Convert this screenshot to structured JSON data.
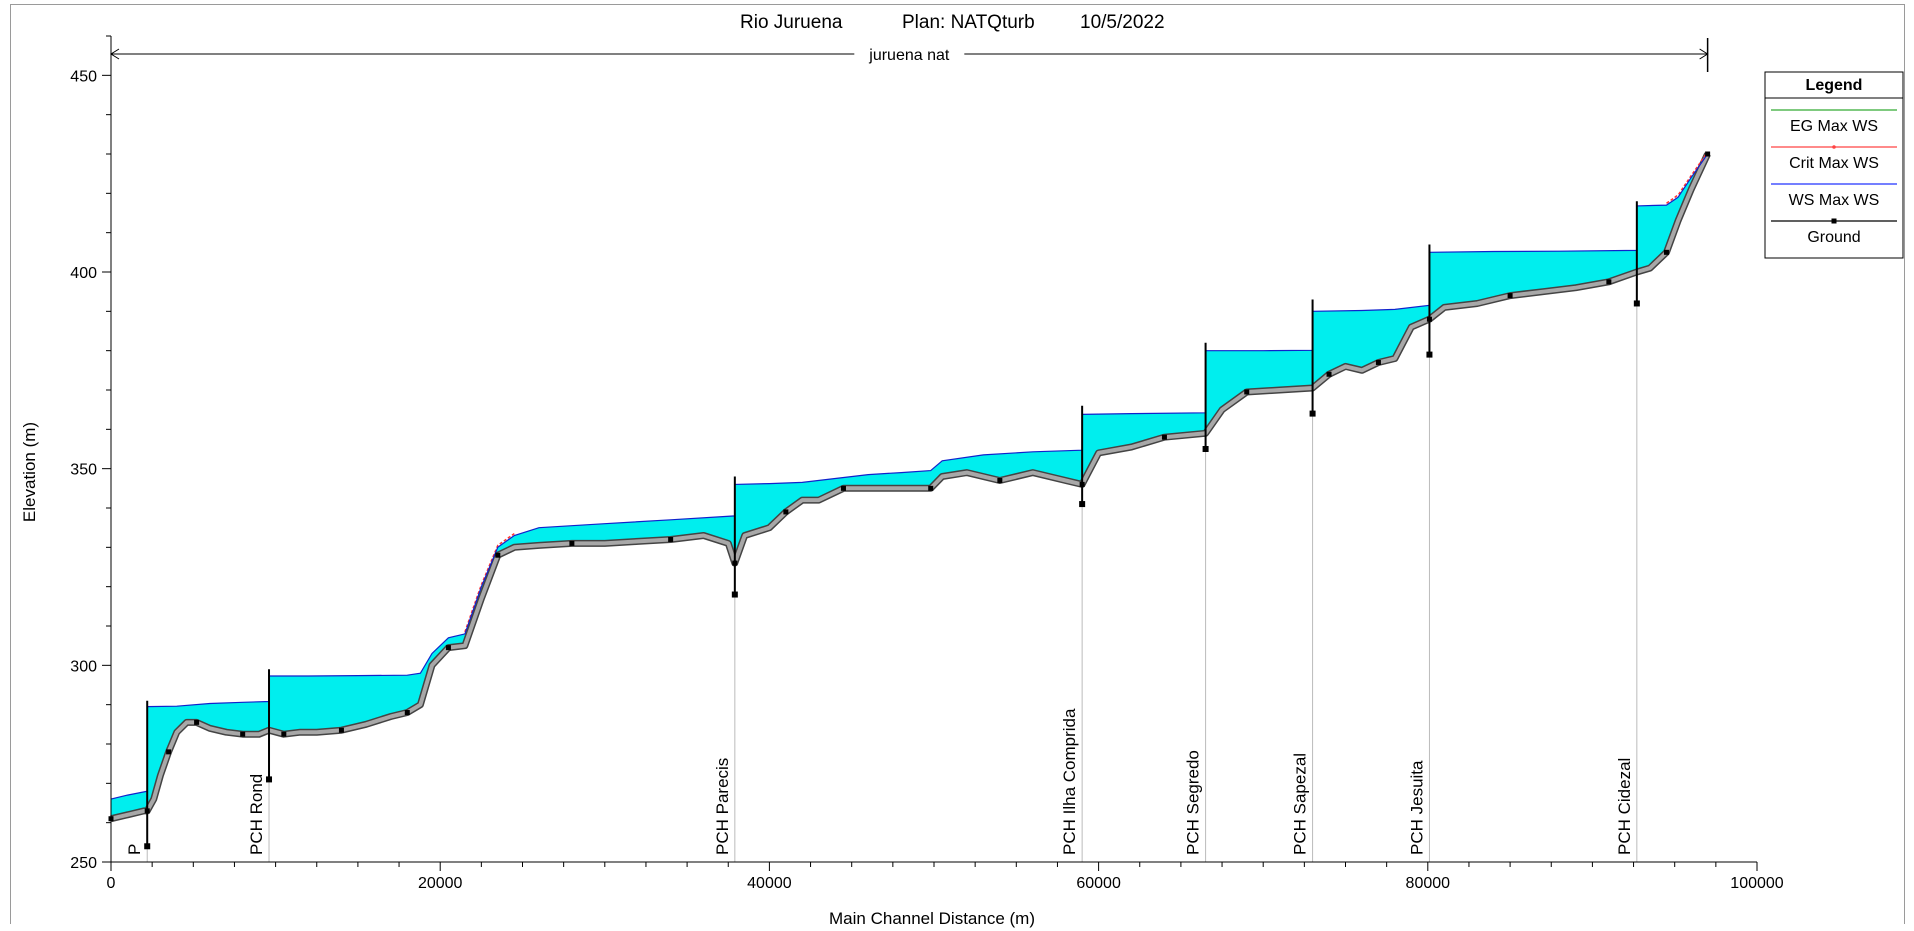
{
  "chart_data": {
    "type": "area",
    "title_parts": [
      "Rio Juruena",
      "Plan: NATQturb",
      "10/5/2022"
    ],
    "reach_label": "juruena nat",
    "xlabel": "Main Channel Distance (m)",
    "ylabel": "Elevation (m)",
    "xlim": [
      0,
      100000
    ],
    "ylim": [
      250,
      460
    ],
    "x_ticks": [
      0,
      20000,
      40000,
      60000,
      80000,
      100000
    ],
    "x_tick_labels": [
      "0",
      "20000",
      "40000",
      "60000",
      "80000",
      "100000"
    ],
    "y_ticks": [
      250,
      300,
      350,
      400,
      450
    ],
    "y_tick_labels": [
      "250",
      "300",
      "350",
      "400",
      "450"
    ],
    "reach_extent": [
      0,
      97000
    ],
    "legend": {
      "title": "Legend",
      "placement": "top-right",
      "items": [
        {
          "label": "EG  Max WS",
          "color": "#33aa33",
          "style": "line"
        },
        {
          "label": "Crit  Max WS",
          "color": "#ff4444",
          "style": "line-dot"
        },
        {
          "label": "WS  Max WS",
          "color": "#2233ff",
          "style": "line"
        },
        {
          "label": "Ground",
          "color": "#000000",
          "style": "line-square"
        }
      ]
    },
    "structures": [
      {
        "label": "P",
        "x": 2200,
        "top": 291,
        "bottom": 254
      },
      {
        "label": "PCH Rond",
        "x": 9600,
        "top": 299,
        "bottom": 271
      },
      {
        "label": "PCH Parecis",
        "x": 37900,
        "top": 348,
        "bottom": 318
      },
      {
        "label": "PCH Ilha Comprida",
        "x": 59000,
        "top": 366,
        "bottom": 341
      },
      {
        "label": "PCH Segredo",
        "x": 66500,
        "top": 382,
        "bottom": 355
      },
      {
        "label": "PCH Sapezal",
        "x": 73000,
        "top": 393,
        "bottom": 364
      },
      {
        "label": "PCH Jesuita",
        "x": 80100,
        "top": 407,
        "bottom": 379
      },
      {
        "label": "PCH Cidezal",
        "x": 92700,
        "top": 418,
        "bottom": 392
      }
    ],
    "series": [
      {
        "name": "WS  Max WS",
        "x": [
          0,
          1000,
          2200,
          2200,
          4000,
          6000,
          8000,
          9600,
          9600,
          12000,
          15000,
          18000,
          18800,
          19500,
          20500,
          21500,
          22500,
          23500,
          24500,
          26000,
          30000,
          34000,
          37900,
          37900,
          40000,
          42000,
          44000,
          46000,
          48000,
          49800,
          50500,
          53000,
          56000,
          59000,
          59000,
          62000,
          66500,
          66500,
          70000,
          73000,
          73000,
          76000,
          78000,
          80100,
          80100,
          84000,
          88000,
          92700,
          92700,
          94500,
          95200,
          96000,
          97000
        ],
        "y": [
          266,
          267,
          268,
          289.5,
          289.6,
          290.3,
          290.6,
          290.8,
          297.3,
          297.3,
          297.4,
          297.5,
          298,
          303,
          307,
          308,
          320,
          330,
          333,
          335,
          336,
          337,
          338,
          346,
          346.2,
          346.5,
          347.5,
          348.5,
          349,
          349.5,
          352,
          353.5,
          354.3,
          354.7,
          363.8,
          364,
          364.2,
          380,
          380,
          380.1,
          390,
          390.2,
          390.5,
          391.5,
          405,
          405.2,
          405.3,
          405.5,
          416.8,
          417,
          419,
          424,
          430
        ]
      },
      {
        "name": "Ground",
        "x": [
          0,
          1000,
          2000,
          2200,
          2600,
          3000,
          3500,
          4000,
          4600,
          5200,
          6000,
          7000,
          8000,
          9000,
          9600,
          10500,
          11500,
          12500,
          14000,
          15500,
          17000,
          18000,
          18800,
          19500,
          20500,
          21500,
          22500,
          23500,
          24500,
          26000,
          28000,
          30000,
          32000,
          34000,
          36000,
          37500,
          37900,
          38500,
          40000,
          41000,
          42000,
          43000,
          44500,
          46000,
          48000,
          49800,
          50500,
          52000,
          54000,
          56000,
          58000,
          59000,
          60000,
          62000,
          64000,
          66500,
          67500,
          69000,
          71000,
          73000,
          74000,
          75000,
          76000,
          77000,
          78000,
          79000,
          80100,
          81000,
          83000,
          85000,
          87000,
          89000,
          91000,
          92700,
          93500,
          94500,
          95200,
          96000,
          97000
        ],
        "y": [
          261,
          262,
          263,
          263,
          266,
          272,
          278,
          283,
          285.5,
          285.5,
          284,
          283,
          282.5,
          282.5,
          283.5,
          282.5,
          283,
          283,
          283.5,
          285,
          287,
          288,
          290,
          300,
          304.5,
          305,
          317,
          328,
          330,
          330.5,
          331,
          331,
          331.5,
          332,
          333,
          331,
          326,
          333,
          335,
          339,
          342,
          342,
          345,
          345,
          345,
          345,
          348,
          349,
          347,
          349,
          347,
          346,
          354,
          355.5,
          358,
          359,
          365,
          369.5,
          370,
          370.5,
          374,
          376,
          375,
          377,
          378,
          386,
          388,
          391,
          392,
          394,
          395,
          396,
          397.5,
          400,
          401,
          405,
          413,
          421,
          430
        ]
      }
    ]
  }
}
